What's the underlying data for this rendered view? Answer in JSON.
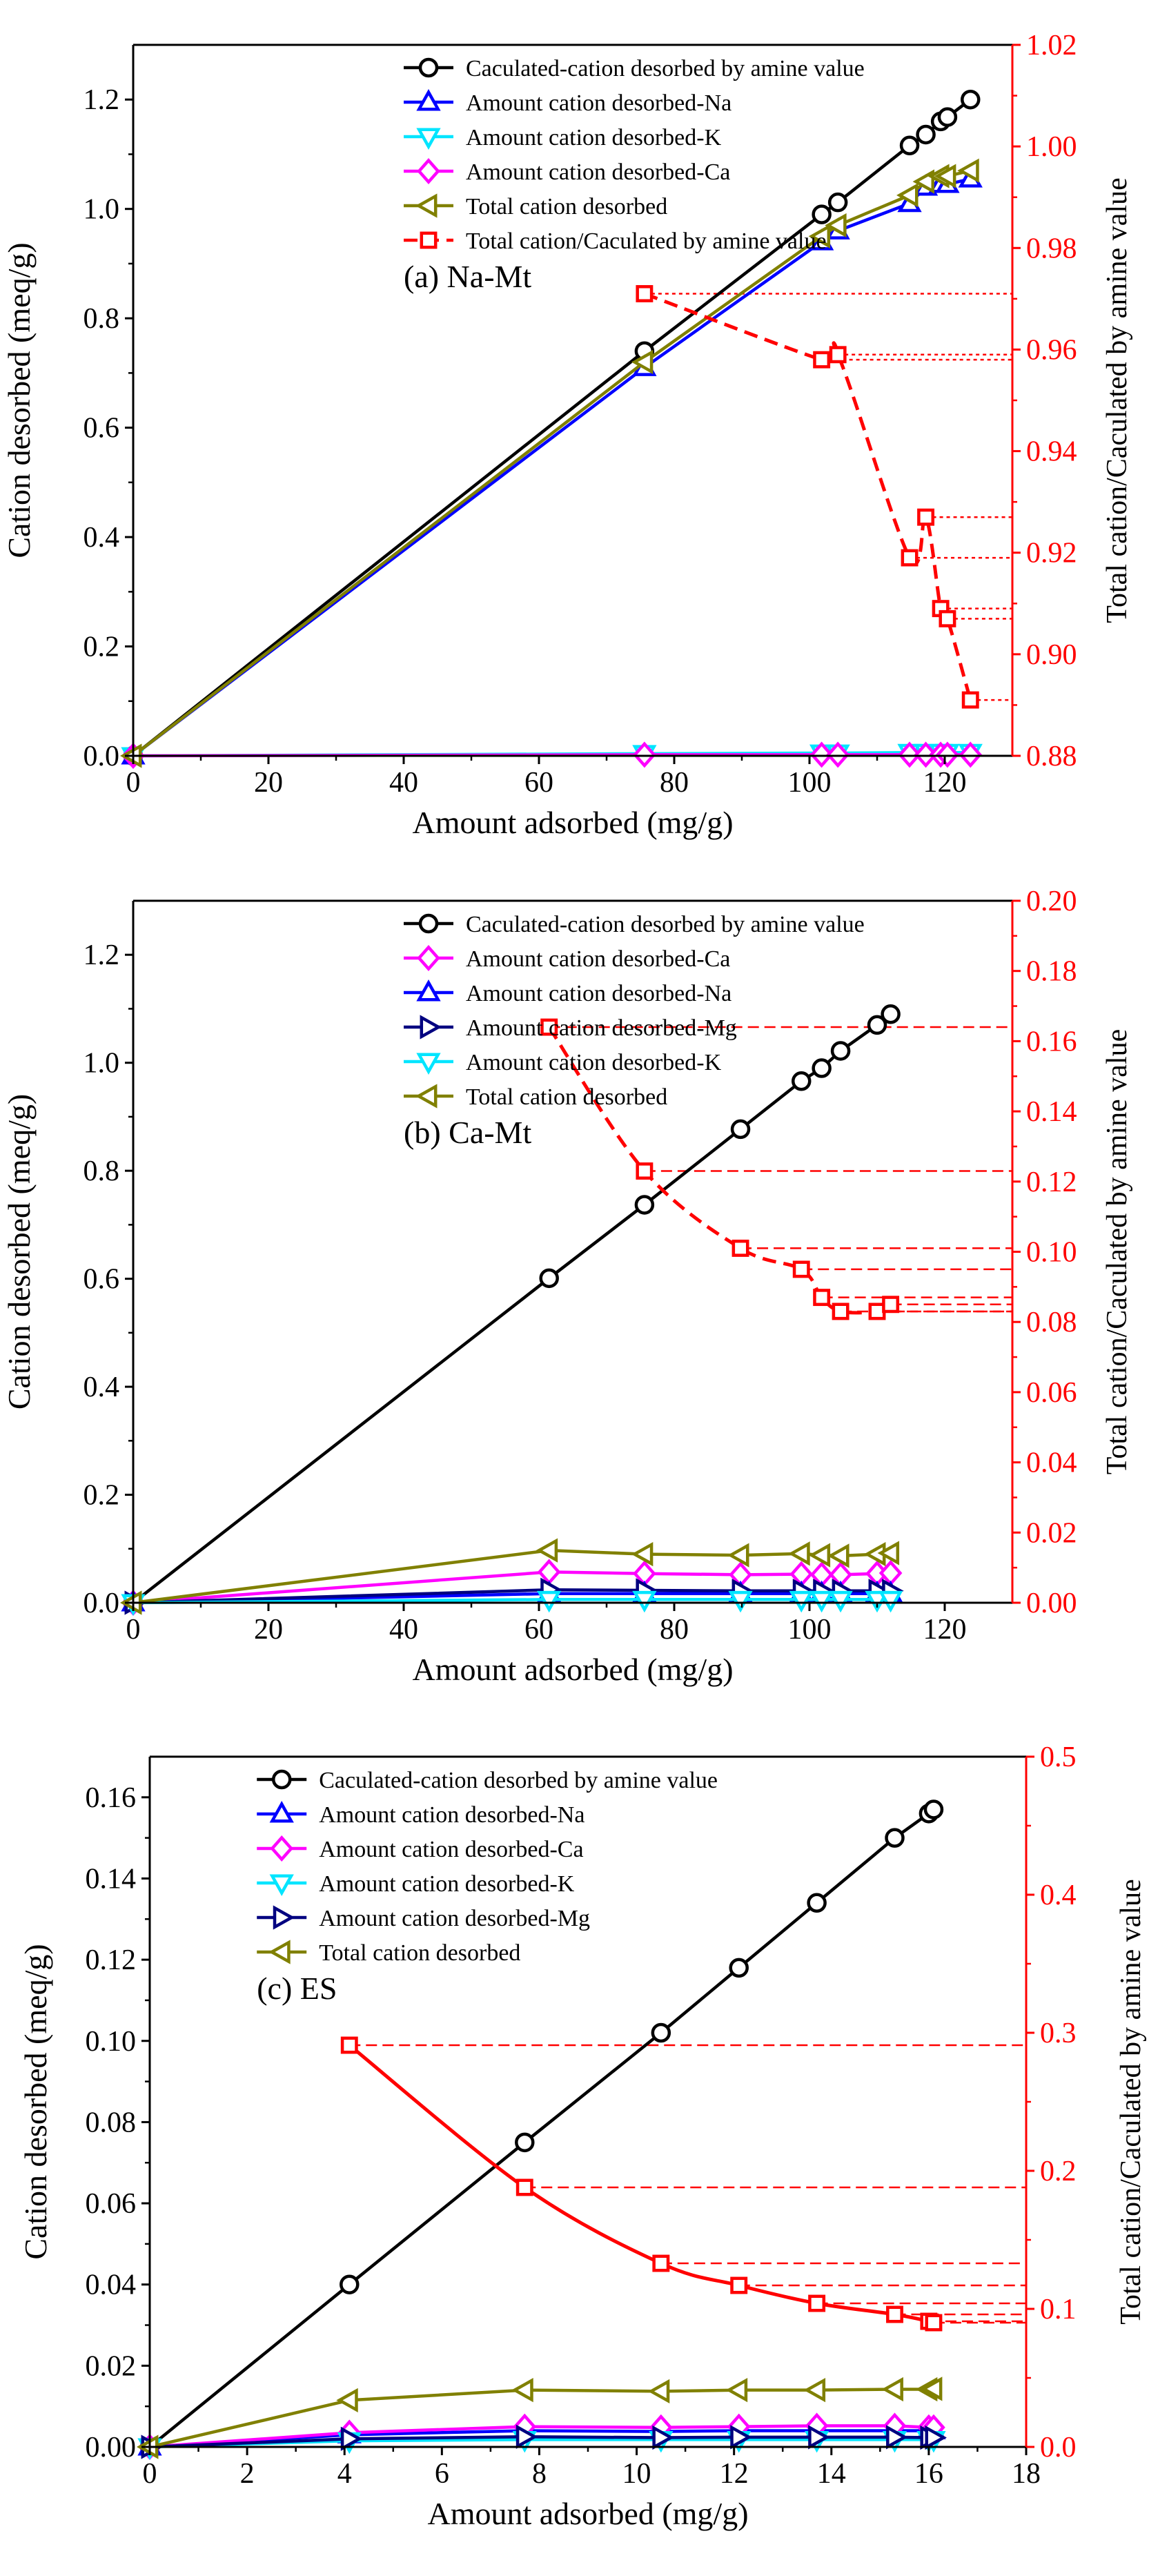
{
  "figure": {
    "description_panels": 3
  },
  "chart_data": [
    {
      "type": "line",
      "panel_label": "(a) Na-Mt",
      "xlabel": "Amount adsorbed (mg/g)",
      "ylabel": "Cation desorbed (meq/g)",
      "y2label": "Total cation/Caculated by amine value",
      "xlim": [
        0,
        130
      ],
      "xticks": [
        0,
        20,
        40,
        60,
        80,
        100,
        120
      ],
      "ylim": [
        0,
        1.3
      ],
      "yticks": [
        0.0,
        0.2,
        0.4,
        0.6,
        0.8,
        1.0,
        1.2
      ],
      "ytick_decimals": 1,
      "y2lim": [
        0.88,
        1.02
      ],
      "y2ticks": [
        0.88,
        0.9,
        0.92,
        0.94,
        0.96,
        0.98,
        1.0,
        1.02
      ],
      "y2tick_decimals": 2,
      "legend_x": 40,
      "series": [
        {
          "name": "Caculated-cation desorbed by  amine value",
          "color": "#000000",
          "marker": "circle",
          "x": [
            0,
            75.6,
            101.8,
            104.2,
            114.8,
            117.2,
            119.4,
            120.4,
            123.8
          ],
          "y": [
            0,
            0.74,
            0.99,
            1.012,
            1.116,
            1.136,
            1.16,
            1.168,
            1.2
          ]
        },
        {
          "name": "Amount cation desorbed-Na",
          "color": "#0000ff",
          "marker": "tri-up",
          "x": [
            0,
            75.6,
            101.8,
            104.2,
            114.8,
            117.2,
            119.4,
            120.4,
            123.8
          ],
          "y": [
            0,
            0.71,
            0.94,
            0.96,
            1.01,
            1.04,
            1.045,
            1.045,
            1.055
          ]
        },
        {
          "name": "Amount cation desorbed-K",
          "color": "#00e5ff",
          "marker": "tri-down",
          "x": [
            0,
            75.6,
            101.8,
            104.2,
            114.8,
            117.2,
            119.4,
            120.4,
            123.8
          ],
          "y": [
            0,
            0.004,
            0.005,
            0.005,
            0.006,
            0.006,
            0.006,
            0.006,
            0.006
          ]
        },
        {
          "name": "Amount cation desorbed-Ca",
          "color": "#ff00ff",
          "marker": "diamond",
          "x": [
            0,
            75.6,
            101.8,
            104.2,
            114.8,
            117.2,
            119.4,
            120.4,
            123.8
          ],
          "y": [
            0,
            0.002,
            0.002,
            0.002,
            0.002,
            0.002,
            0.002,
            0.002,
            0.002
          ]
        },
        {
          "name": "Total cation desorbed",
          "color": "#808000",
          "marker": "tri-left",
          "x": [
            0,
            75.6,
            101.8,
            104.2,
            114.8,
            117.2,
            119.4,
            120.4,
            123.8
          ],
          "y": [
            0,
            0.72,
            0.95,
            0.97,
            1.025,
            1.05,
            1.06,
            1.06,
            1.07
          ]
        }
      ],
      "ratio_series": {
        "name": "Total cation/Caculated by amine value",
        "color": "#ff0000",
        "marker": "square",
        "style": "dashed",
        "x": [
          75.6,
          101.8,
          104.2,
          114.8,
          117.2,
          119.4,
          120.4,
          123.8
        ],
        "y": [
          0.971,
          0.958,
          0.959,
          0.919,
          0.927,
          0.909,
          0.907,
          0.891
        ]
      }
    },
    {
      "type": "line",
      "panel_label": "(b) Ca-Mt",
      "xlabel": "Amount adsorbed (mg/g)",
      "ylabel": "Cation desorbed (meq/g)",
      "y2label": "Total cation/Caculated by amine value",
      "xlim": [
        0,
        130
      ],
      "xticks": [
        0,
        20,
        40,
        60,
        80,
        100,
        120
      ],
      "ylim": [
        0,
        1.3
      ],
      "yticks": [
        0.0,
        0.2,
        0.4,
        0.6,
        0.8,
        1.0,
        1.2
      ],
      "ytick_decimals": 1,
      "y2lim": [
        0,
        0.2
      ],
      "y2ticks": [
        0.0,
        0.02,
        0.04,
        0.06,
        0.08,
        0.1,
        0.12,
        0.14,
        0.16,
        0.18,
        0.2
      ],
      "y2tick_decimals": 2,
      "legend_x": 40,
      "series": [
        {
          "name": "Caculated-cation desorbed by  amine value",
          "color": "#000000",
          "marker": "circle",
          "x": [
            0,
            61.5,
            75.6,
            89.8,
            98.8,
            101.8,
            104.6,
            110.0,
            112.0
          ],
          "y": [
            0,
            0.601,
            0.737,
            0.877,
            0.966,
            0.99,
            1.022,
            1.07,
            1.09
          ]
        },
        {
          "name": "Amount cation desorbed-Ca",
          "color": "#ff00ff",
          "marker": "diamond",
          "x": [
            0,
            61.5,
            75.6,
            89.8,
            98.8,
            101.8,
            104.6,
            110.0,
            112.0
          ],
          "y": [
            0,
            0.057,
            0.054,
            0.052,
            0.053,
            0.052,
            0.052,
            0.054,
            0.055
          ]
        },
        {
          "name": "Amount cation desorbed-Na",
          "color": "#0000ff",
          "marker": "tri-up",
          "x": [
            0,
            61.5,
            75.6,
            89.8,
            98.8,
            101.8,
            104.6,
            110.0,
            112.0
          ],
          "y": [
            0,
            0.017,
            0.017,
            0.017,
            0.017,
            0.017,
            0.017,
            0.017,
            0.017
          ]
        },
        {
          "name": "Amount cation desorbed-Mg",
          "color": "#000080",
          "marker": "tri-right",
          "x": [
            0,
            61.5,
            75.6,
            89.8,
            98.8,
            101.8,
            104.6,
            110.0,
            112.0
          ],
          "y": [
            0,
            0.024,
            0.023,
            0.022,
            0.022,
            0.022,
            0.022,
            0.022,
            0.022
          ]
        },
        {
          "name": "Amount cation desorbed-K",
          "color": "#00e5ff",
          "marker": "tri-down",
          "x": [
            0,
            61.5,
            75.6,
            89.8,
            98.8,
            101.8,
            104.6,
            110.0,
            112.0
          ],
          "y": [
            0,
            0.006,
            0.006,
            0.006,
            0.006,
            0.006,
            0.006,
            0.006,
            0.006
          ]
        },
        {
          "name": "Total cation desorbed",
          "color": "#808000",
          "marker": "tri-left",
          "x": [
            0,
            61.5,
            75.6,
            89.8,
            98.8,
            101.8,
            104.6,
            110.0,
            112.0
          ],
          "y": [
            0,
            0.097,
            0.09,
            0.088,
            0.091,
            0.088,
            0.087,
            0.09,
            0.092
          ]
        }
      ],
      "ratio_series": {
        "name": "",
        "color": "#ff0000",
        "marker": "square",
        "style": "dashed",
        "x": [
          61.5,
          75.6,
          89.8,
          98.8,
          101.8,
          104.6,
          110.0,
          112.0
        ],
        "y": [
          0.164,
          0.123,
          0.101,
          0.095,
          0.087,
          0.083,
          0.083,
          0.085
        ]
      }
    },
    {
      "type": "line",
      "panel_label": "(c) ES",
      "xlabel": "Amount adsorbed (mg/g)",
      "ylabel": "Cation desorbed (meq/g)",
      "y2label": "Total cation/Caculated by amine value",
      "xlim": [
        0,
        18
      ],
      "xticks": [
        0,
        2,
        4,
        6,
        8,
        10,
        12,
        14,
        16,
        18
      ],
      "ylim": [
        0,
        0.17
      ],
      "yticks": [
        0.0,
        0.02,
        0.04,
        0.06,
        0.08,
        0.1,
        0.12,
        0.14,
        0.16
      ],
      "ytick_decimals": 2,
      "y2lim": [
        0,
        0.5
      ],
      "y2ticks": [
        0.0,
        0.1,
        0.2,
        0.3,
        0.4,
        0.5
      ],
      "y2tick_decimals": 1,
      "legend_x": 2.2,
      "series": [
        {
          "name": "Caculated-cation desorbed by  amine value",
          "color": "#000000",
          "marker": "circle",
          "x": [
            0,
            4.1,
            7.7,
            10.5,
            12.1,
            13.7,
            15.3,
            16.0,
            16.1
          ],
          "y": [
            0,
            0.04,
            0.075,
            0.102,
            0.118,
            0.134,
            0.15,
            0.156,
            0.157
          ]
        },
        {
          "name": "Amount cation desorbed-Na",
          "color": "#0000ff",
          "marker": "tri-up",
          "x": [
            0,
            4.1,
            7.7,
            10.5,
            12.1,
            13.7,
            15.3,
            16.0,
            16.1
          ],
          "y": [
            0,
            0.003,
            0.004,
            0.0038,
            0.004,
            0.004,
            0.004,
            0.004,
            0.004
          ]
        },
        {
          "name": "Amount cation desorbed-Ca",
          "color": "#ff00ff",
          "marker": "diamond",
          "x": [
            0,
            4.1,
            7.7,
            10.5,
            12.1,
            13.7,
            15.3,
            16.0,
            16.1
          ],
          "y": [
            0,
            0.0035,
            0.005,
            0.0048,
            0.005,
            0.0052,
            0.0052,
            0.0048,
            0.0048
          ]
        },
        {
          "name": "Amount cation desorbed-K",
          "color": "#00e5ff",
          "marker": "tri-down",
          "x": [
            0,
            4.1,
            7.7,
            10.5,
            12.1,
            13.7,
            15.3,
            16.0,
            16.1
          ],
          "y": [
            0,
            0.0015,
            0.0018,
            0.0018,
            0.0018,
            0.0018,
            0.0018,
            0.0018,
            0.0018
          ]
        },
        {
          "name": "Amount cation desorbed-Mg",
          "color": "#000080",
          "marker": "tri-right",
          "x": [
            0,
            4.1,
            7.7,
            10.5,
            12.1,
            13.7,
            15.3,
            16.0,
            16.1
          ],
          "y": [
            0,
            0.002,
            0.0025,
            0.0023,
            0.0024,
            0.0024,
            0.0024,
            0.0023,
            0.0023
          ]
        },
        {
          "name": "Total cation desorbed",
          "color": "#808000",
          "marker": "tri-left",
          "x": [
            0,
            4.1,
            7.7,
            10.5,
            12.1,
            13.7,
            15.3,
            16.0,
            16.1
          ],
          "y": [
            0,
            0.0115,
            0.014,
            0.0137,
            0.014,
            0.014,
            0.0142,
            0.0142,
            0.0143
          ]
        }
      ],
      "ratio_series": {
        "name": "",
        "color": "#ff0000",
        "marker": "square",
        "style": "solid",
        "x": [
          4.1,
          7.7,
          10.5,
          12.1,
          13.7,
          15.3,
          16.0,
          16.1
        ],
        "y": [
          0.291,
          0.188,
          0.133,
          0.117,
          0.104,
          0.096,
          0.091,
          0.09
        ]
      }
    }
  ]
}
